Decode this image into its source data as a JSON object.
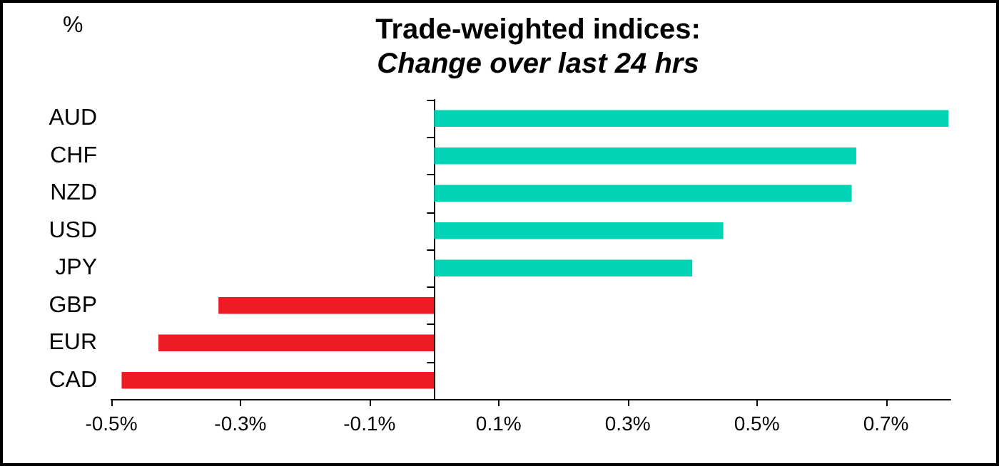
{
  "chart_data": {
    "type": "bar",
    "orientation": "horizontal",
    "title": "Trade-weighted indices:",
    "subtitle": "Change over last 24 hrs",
    "annotations": [
      "%"
    ],
    "categories": [
      "AUD",
      "CHF",
      "NZD",
      "USD",
      "JPY",
      "GBP",
      "EUR",
      "CAD"
    ],
    "values": [
      0.797,
      0.654,
      0.647,
      0.448,
      0.4,
      -0.334,
      -0.427,
      -0.484
    ],
    "colors": [
      "#00d4b4",
      "#00d4b4",
      "#00d4b4",
      "#00d4b4",
      "#00d4b4",
      "#ed1c24",
      "#ed1c24",
      "#ed1c24"
    ],
    "xlim": [
      -0.5,
      0.8
    ],
    "xticks": [
      {
        "value": -0.5,
        "label": "-0.5%"
      },
      {
        "value": -0.3,
        "label": "-0.3%"
      },
      {
        "value": -0.1,
        "label": "-0.1%"
      },
      {
        "value": 0.1,
        "label": "0.1%"
      },
      {
        "value": 0.3,
        "label": "0.3%"
      },
      {
        "value": 0.5,
        "label": "0.5%"
      },
      {
        "value": 0.7,
        "label": "0.7%"
      }
    ],
    "grid": false
  }
}
